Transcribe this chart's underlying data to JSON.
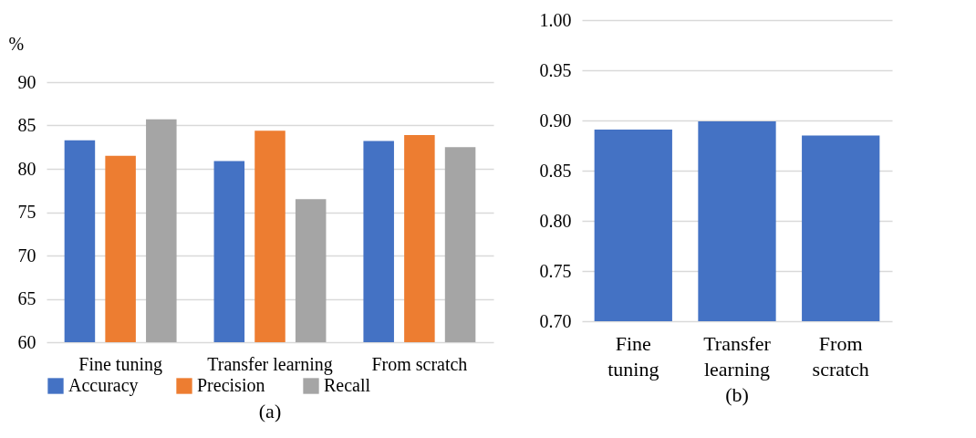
{
  "chart_data": [
    {
      "type": "bar",
      "title": "(a)",
      "ylabel": "%",
      "categories": [
        "Fine tuning",
        "Transfer  learning",
        "From scratch"
      ],
      "series": [
        {
          "name": "Accuracy",
          "color": "#4472c4",
          "values": [
            83.3,
            80.9,
            83.2
          ]
        },
        {
          "name": "Precision",
          "color": "#ed7d31",
          "values": [
            81.5,
            84.4,
            83.9
          ]
        },
        {
          "name": "Recall",
          "color": "#a5a5a5",
          "values": [
            85.7,
            76.5,
            82.5
          ]
        }
      ],
      "ylim": [
        60,
        90
      ],
      "yticks": [
        60,
        65,
        70,
        75,
        80,
        85,
        90
      ],
      "grid": "y",
      "legend": "bottom"
    },
    {
      "type": "bar",
      "title": "(b)",
      "categories": [
        "Fine tuning",
        "Transfer learning",
        "From scratch"
      ],
      "color": "#4472c4",
      "values": [
        0.891,
        0.899,
        0.885
      ],
      "ylim": [
        0.7,
        1.0
      ],
      "yticks": [
        {
          "value": 0.7,
          "label": "0.70"
        },
        {
          "value": 0.75,
          "label": "0.75"
        },
        {
          "value": 0.8,
          "label": "0.80"
        },
        {
          "value": 0.85,
          "label": "0.85"
        },
        {
          "value": 0.9,
          "label": "0.90"
        },
        {
          "value": 0.95,
          "label": "0.95"
        },
        {
          "value": 1.0,
          "label": "1.00"
        }
      ],
      "grid": "y"
    }
  ]
}
